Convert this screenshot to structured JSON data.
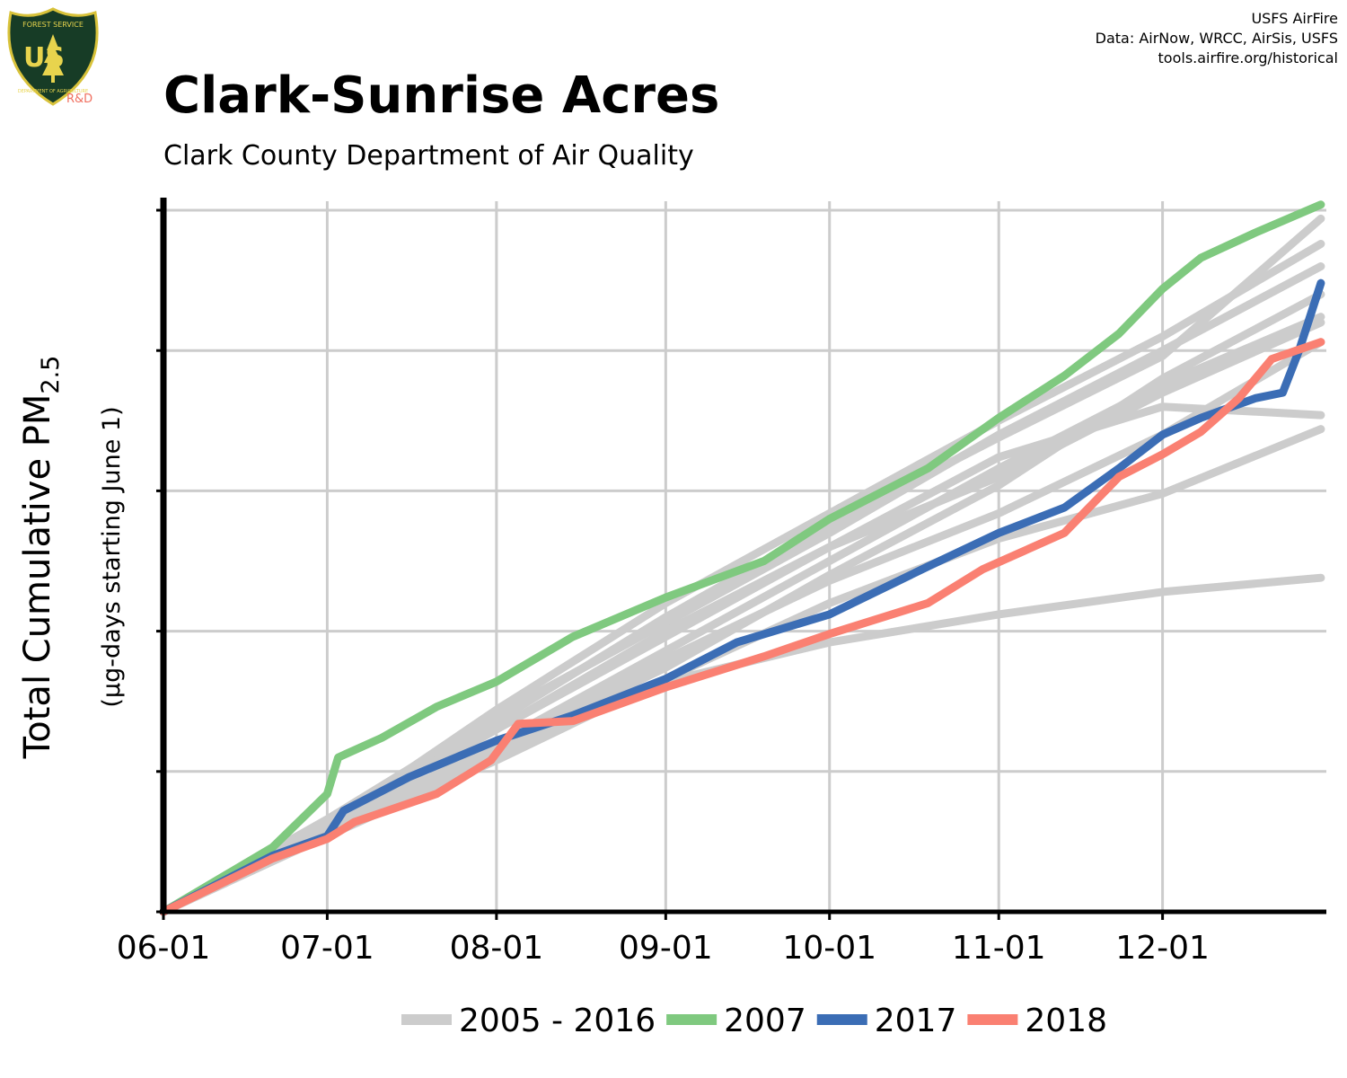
{
  "header": {
    "logo_top_text": "FOREST SERVICE",
    "logo_letters": "US",
    "logo_bottom_text": "DEPARTMENT OF AGRICULTURE",
    "logo_rd": "R&D",
    "credit_lines": [
      "USFS AirFire",
      "Data: AirNow, WRCC, AirSis, USFS",
      "tools.airfire.org/historical"
    ]
  },
  "chart_data": {
    "type": "line",
    "title": "Clark-Sunrise Acres",
    "subtitle": "Clark County Department of Air Quality",
    "ylabel": "Total Cumulative PM",
    "ylabel_sub": "2.5",
    "ylabel2": "(µg-days starting June 1)",
    "x_ticks": [
      "06-01",
      "07-01",
      "08-01",
      "09-01",
      "10-01",
      "11-01",
      "12-01"
    ],
    "x_tick_days": [
      0,
      30,
      61,
      92,
      122,
      153,
      183
    ],
    "xlim": [
      0,
      213
    ],
    "ylim": [
      0,
      2500
    ],
    "y_gridlines": [
      0,
      500,
      1000,
      1500,
      2000,
      2500
    ],
    "y_tick_labels_shown": false,
    "grid": true,
    "legend_position": "bottom",
    "colors": {
      "background_years": "#cccccc",
      "2007": "#7fc97f",
      "2017": "#3b6db5",
      "2018": "#fa8072"
    },
    "legend": [
      {
        "label": "2005 - 2016",
        "color": "#cccccc"
      },
      {
        "label": "2007",
        "color": "#7fc97f"
      },
      {
        "label": "2017",
        "color": "#3b6db5"
      },
      {
        "label": "2018",
        "color": "#fa8072"
      }
    ],
    "background_series": [
      {
        "x": [
          0,
          30,
          61,
          92,
          122,
          153,
          183,
          212
        ],
        "y": [
          0,
          300,
          560,
          820,
          960,
          1060,
          1140,
          1190
        ]
      },
      {
        "x": [
          0,
          30,
          61,
          92,
          122,
          153,
          183,
          212
        ],
        "y": [
          0,
          320,
          650,
          980,
          1300,
          1620,
          1800,
          1770
        ]
      },
      {
        "x": [
          0,
          30,
          61,
          92,
          122,
          153,
          183,
          212
        ],
        "y": [
          0,
          330,
          700,
          1030,
          1350,
          1700,
          2000,
          2300
        ]
      },
      {
        "x": [
          0,
          30,
          61,
          92,
          122,
          153,
          183,
          212
        ],
        "y": [
          0,
          280,
          580,
          870,
          1200,
          1520,
          1900,
          2200
        ]
      },
      {
        "x": [
          0,
          30,
          61,
          92,
          122,
          153,
          183,
          212
        ],
        "y": [
          0,
          290,
          600,
          930,
          1250,
          1580,
          1880,
          2120
        ]
      },
      {
        "x": [
          0,
          30,
          61,
          92,
          122,
          153,
          183,
          212
        ],
        "y": [
          0,
          310,
          680,
          1050,
          1380,
          1690,
          1980,
          2470
        ]
      },
      {
        "x": [
          0,
          30,
          61,
          92,
          122,
          153,
          183,
          212
        ],
        "y": [
          0,
          300,
          650,
          1000,
          1300,
          1550,
          1850,
          2100
        ]
      },
      {
        "x": [
          0,
          30,
          61,
          92,
          122,
          153,
          183,
          212
        ],
        "y": [
          0,
          270,
          540,
          830,
          1100,
          1330,
          1490,
          1720
        ]
      },
      {
        "x": [
          0,
          30,
          61,
          92,
          122,
          153,
          183,
          212
        ],
        "y": [
          0,
          290,
          590,
          900,
          1180,
          1420,
          1700,
          2030
        ]
      },
      {
        "x": [
          0,
          30,
          61,
          92,
          122,
          153,
          183,
          212
        ],
        "y": [
          0,
          310,
          720,
          1100,
          1420,
          1750,
          2050,
          2380
        ]
      }
    ],
    "series": [
      {
        "name": "2007",
        "color": "#7fc97f",
        "x": [
          0,
          20,
          30,
          32,
          40,
          50,
          61,
          75,
          92,
          110,
          122,
          140,
          153,
          165,
          175,
          183,
          190,
          200,
          212
        ],
        "y": [
          0,
          230,
          420,
          550,
          620,
          730,
          820,
          980,
          1120,
          1250,
          1400,
          1580,
          1760,
          1910,
          2060,
          2220,
          2330,
          2420,
          2520
        ]
      },
      {
        "name": "2017",
        "color": "#3b6db5",
        "x": [
          0,
          20,
          30,
          33,
          45,
          61,
          75,
          92,
          105,
          122,
          140,
          153,
          165,
          175,
          183,
          190,
          200,
          205,
          208,
          212
        ],
        "y": [
          0,
          200,
          270,
          360,
          480,
          610,
          700,
          830,
          960,
          1060,
          1230,
          1350,
          1440,
          1580,
          1700,
          1760,
          1830,
          1850,
          2000,
          2240
        ]
      },
      {
        "name": "2018",
        "color": "#fa8072",
        "x": [
          0,
          20,
          30,
          35,
          50,
          60,
          65,
          75,
          92,
          110,
          122,
          140,
          150,
          165,
          175,
          183,
          190,
          197,
          203,
          212
        ],
        "y": [
          0,
          190,
          260,
          320,
          420,
          540,
          670,
          680,
          800,
          910,
          990,
          1100,
          1220,
          1350,
          1550,
          1630,
          1710,
          1830,
          1970,
          2030
        ]
      }
    ]
  }
}
